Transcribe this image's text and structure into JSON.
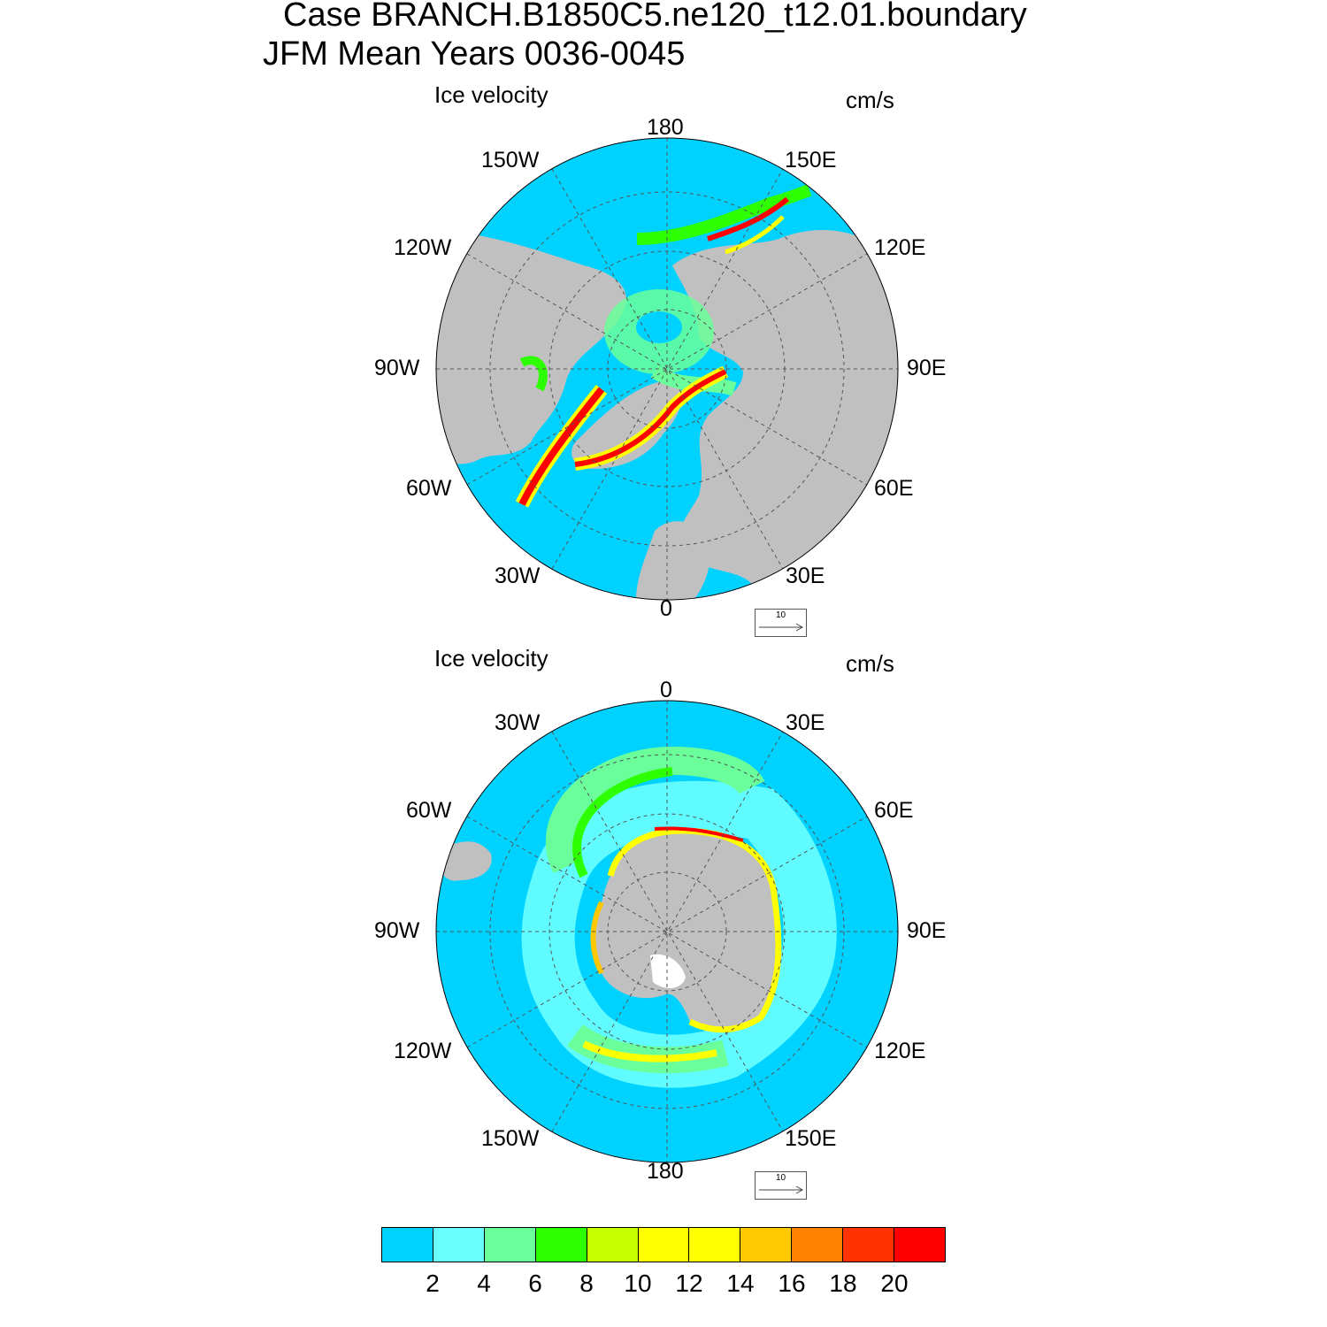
{
  "title": {
    "line1": "Case BRANCH.B1850C5.ne120_t12.01.boundary",
    "line2": "JFM Mean    Years 0036-0045"
  },
  "panels": [
    {
      "variable": "Ice velocity",
      "units": "cm/s",
      "hemisphere": "north",
      "lon_labels": {
        "top": "180",
        "top_right": "150E",
        "right_upper": "120E",
        "right": "90E",
        "right_lower": "60E",
        "bottom_right": "30E",
        "bottom": "0",
        "bottom_left": "30W",
        "left_lower": "60W",
        "left": "90W",
        "left_upper": "120W",
        "top_left": "150W"
      },
      "reference_vector": "10"
    },
    {
      "variable": "Ice velocity",
      "units": "cm/s",
      "hemisphere": "south",
      "lon_labels": {
        "top": "0",
        "top_right": "30E",
        "right_upper": "60E",
        "right": "90E",
        "right_lower": "120E",
        "bottom_right": "150E",
        "bottom": "180",
        "bottom_left": "150W",
        "left_lower": "120W",
        "left": "90W",
        "left_upper": "60W",
        "top_left": "30W"
      },
      "reference_vector": "10"
    }
  ],
  "colorbar": {
    "labels": [
      "2",
      "4",
      "6",
      "8",
      "10",
      "12",
      "14",
      "16",
      "18",
      "20"
    ],
    "colors": [
      "#00d2ff",
      "#6affff",
      "#6aff9a",
      "#2eff00",
      "#c8ff00",
      "#ffff00",
      "#ffff00",
      "#ffc800",
      "#ff8200",
      "#ff3200",
      "#ff0000"
    ]
  },
  "map_colors": {
    "ocean": "#00d2ff",
    "land": "#c0c0c0",
    "ice_edge": "#ffffff"
  }
}
